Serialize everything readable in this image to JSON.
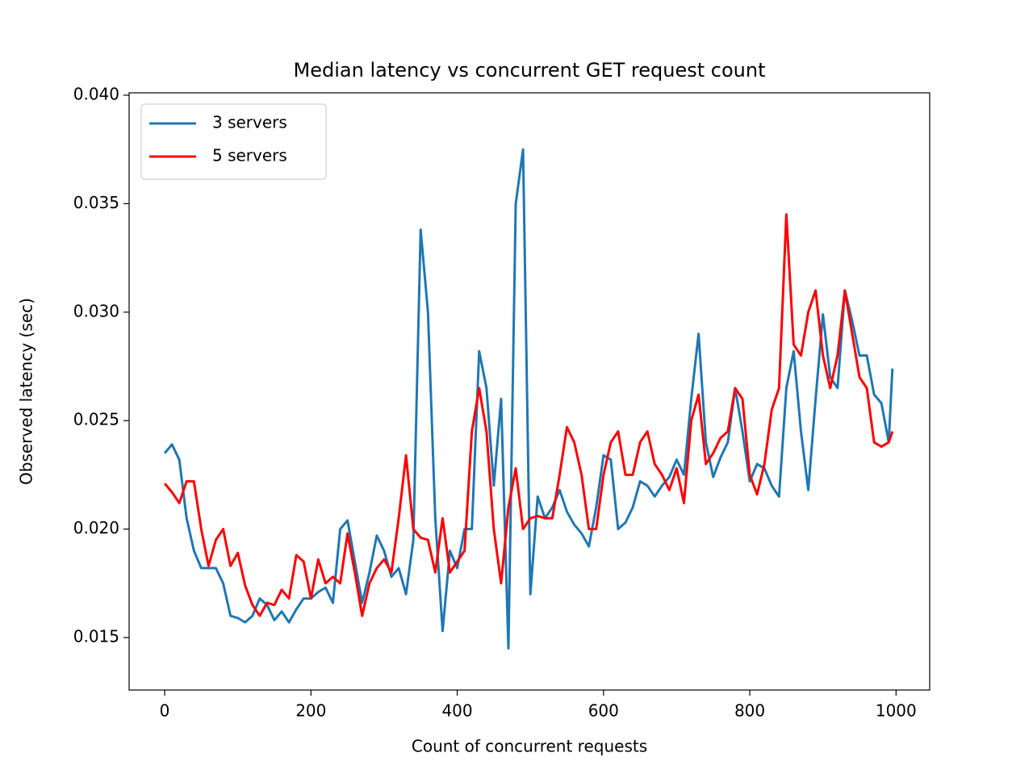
{
  "chart_data": {
    "type": "line",
    "title": "Median latency vs concurrent GET request count",
    "xlabel": "Count of concurrent requests",
    "ylabel": "Observed latency (sec)",
    "x": [
      0,
      10,
      20,
      30,
      40,
      50,
      60,
      70,
      80,
      90,
      100,
      110,
      120,
      130,
      140,
      150,
      160,
      170,
      180,
      190,
      200,
      210,
      220,
      230,
      240,
      250,
      260,
      270,
      280,
      290,
      300,
      310,
      320,
      330,
      340,
      350,
      360,
      370,
      380,
      390,
      400,
      410,
      420,
      430,
      440,
      450,
      460,
      470,
      480,
      490,
      500,
      510,
      520,
      530,
      540,
      550,
      560,
      570,
      580,
      590,
      600,
      610,
      620,
      630,
      640,
      650,
      660,
      670,
      680,
      690,
      700,
      710,
      720,
      730,
      740,
      750,
      760,
      770,
      780,
      790,
      800,
      810,
      820,
      830,
      840,
      850,
      860,
      870,
      880,
      890,
      900,
      910,
      920,
      930,
      940,
      950,
      960,
      970,
      980,
      990,
      995
    ],
    "series": [
      {
        "name": "3 servers",
        "color": "#1f77b4",
        "values": [
          0.0235,
          0.0239,
          0.0232,
          0.0205,
          0.019,
          0.0182,
          0.0182,
          0.0182,
          0.0175,
          0.016,
          0.0159,
          0.0157,
          0.016,
          0.0168,
          0.0165,
          0.0158,
          0.0162,
          0.0157,
          0.0163,
          0.0168,
          0.0168,
          0.0171,
          0.0173,
          0.0166,
          0.02,
          0.0204,
          0.0185,
          0.0166,
          0.018,
          0.0197,
          0.019,
          0.0178,
          0.0182,
          0.017,
          0.0195,
          0.0338,
          0.03,
          0.0205,
          0.0153,
          0.019,
          0.0182,
          0.02,
          0.02,
          0.0282,
          0.0265,
          0.022,
          0.026,
          0.0145,
          0.035,
          0.0375,
          0.017,
          0.0215,
          0.0205,
          0.021,
          0.0218,
          0.0208,
          0.0202,
          0.0198,
          0.0192,
          0.021,
          0.0234,
          0.0232,
          0.02,
          0.0203,
          0.021,
          0.0222,
          0.022,
          0.0215,
          0.022,
          0.0224,
          0.0232,
          0.0225,
          0.026,
          0.029,
          0.024,
          0.0224,
          0.0233,
          0.024,
          0.0265,
          0.0245,
          0.0222,
          0.023,
          0.0228,
          0.022,
          0.0215,
          0.0265,
          0.0282,
          0.0245,
          0.0218,
          0.026,
          0.0299,
          0.027,
          0.0265,
          0.031,
          0.0296,
          0.028,
          0.028,
          0.0262,
          0.0258,
          0.024,
          0.0274
        ]
      },
      {
        "name": "5 servers",
        "color": "#ff0000",
        "values": [
          0.0221,
          0.0217,
          0.0212,
          0.0222,
          0.0222,
          0.02,
          0.0183,
          0.0195,
          0.02,
          0.0183,
          0.0189,
          0.0174,
          0.0165,
          0.016,
          0.0166,
          0.0165,
          0.0172,
          0.0168,
          0.0188,
          0.0185,
          0.0168,
          0.0186,
          0.0175,
          0.0178,
          0.0175,
          0.0198,
          0.018,
          0.016,
          0.0175,
          0.0182,
          0.0186,
          0.018,
          0.0205,
          0.0234,
          0.02,
          0.0196,
          0.0195,
          0.018,
          0.0205,
          0.018,
          0.0185,
          0.019,
          0.0245,
          0.0265,
          0.0245,
          0.02,
          0.0175,
          0.021,
          0.0228,
          0.02,
          0.0205,
          0.0206,
          0.0205,
          0.0205,
          0.0225,
          0.0247,
          0.024,
          0.0225,
          0.02,
          0.02,
          0.0225,
          0.024,
          0.0245,
          0.0225,
          0.0225,
          0.024,
          0.0245,
          0.023,
          0.0225,
          0.0218,
          0.0228,
          0.0212,
          0.025,
          0.0262,
          0.023,
          0.0235,
          0.0242,
          0.0245,
          0.0265,
          0.026,
          0.0225,
          0.0216,
          0.023,
          0.0255,
          0.0265,
          0.0345,
          0.0285,
          0.028,
          0.03,
          0.031,
          0.028,
          0.0265,
          0.028,
          0.031,
          0.029,
          0.027,
          0.0265,
          0.024,
          0.0238,
          0.024,
          0.0245
        ]
      }
    ],
    "xlim": [
      -48.6,
      1046
    ],
    "ylim": [
      0.01258,
      0.04011
    ],
    "xticks": [
      0,
      200,
      400,
      600,
      800,
      1000
    ],
    "yticks": [
      0.015,
      {
        "value": 0.02,
        "label": "0.020"
      },
      0.025,
      {
        "value": 0.03,
        "label": "0.030"
      },
      0.035,
      {
        "value": 0.04,
        "label": "0.040"
      }
    ],
    "legend": "upper left"
  }
}
